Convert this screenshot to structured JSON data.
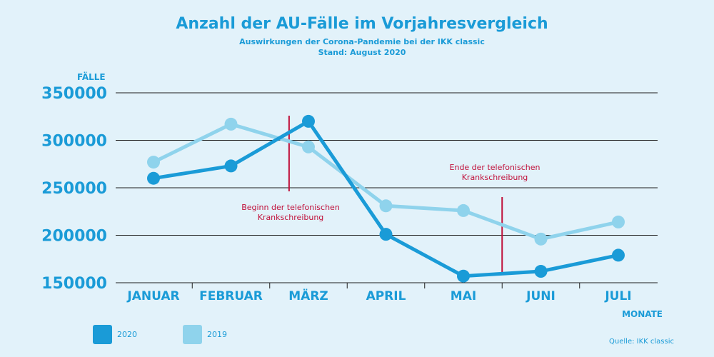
{
  "colors": {
    "background": "#e2f2fa",
    "text": "#1a9bd7",
    "series_2020": "#1a9bd7",
    "series_2019": "#8fd3ec",
    "grid": "#1f1f1f",
    "annotation": "#c0103a"
  },
  "chart_data": {
    "type": "line",
    "title": "Anzahl der AU-Fälle im Vorjahresvergleich",
    "subtitle_lines": [
      "Auswirkungen der Corona-Pandemie bei der IKK classic",
      "Stand: August 2020"
    ],
    "ylabel": "FÄLLE",
    "xlabel": "MONATE",
    "ylim": [
      150000,
      350000
    ],
    "yticks": [
      "150000",
      "200000",
      "250000",
      "300000",
      "350000"
    ],
    "grid": true,
    "legend_position": "bottom-left",
    "categories": [
      "JANUAR",
      "FEBRUAR",
      "MÄRZ",
      "APRIL",
      "MAI",
      "JUNI",
      "JULI"
    ],
    "series": [
      {
        "name": "2020",
        "values": [
          260000,
          273000,
          320000,
          201000,
          157000,
          162000,
          179000
        ]
      },
      {
        "name": "2019",
        "values": [
          277000,
          317000,
          293000,
          231000,
          226000,
          196000,
          214000
        ]
      }
    ],
    "annotations": [
      {
        "lines": [
          "Beginn der telefonischen",
          "Krankschreibung"
        ],
        "between": [
          "FEBRUAR",
          "MÄRZ"
        ],
        "x_offset": 0.75
      },
      {
        "lines": [
          "Ende der telefonischen",
          "Krankschreibung"
        ],
        "between": [
          "MAI",
          "JUNI"
        ],
        "x_offset": 0.5
      }
    ]
  },
  "source": "Quelle: IKK classic"
}
